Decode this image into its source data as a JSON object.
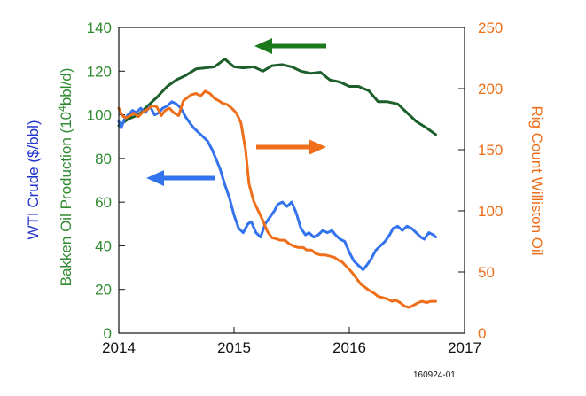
{
  "chart_data": {
    "type": "line",
    "note": "160924-01",
    "x_axis": {
      "min": 2014,
      "max": 2017,
      "ticks": [
        "2014",
        "2015",
        "2016",
        "2017"
      ]
    },
    "y_left": {
      "min": 0,
      "max": 140,
      "ticks": [
        "0",
        "20",
        "40",
        "60",
        "80",
        "100",
        "120",
        "140"
      ],
      "label_wti": "WTI Crude ($/bbl)",
      "label_bakken_prefix": "Bakken Oil Production (10",
      "label_bakken_sup": "4",
      "label_bakken_suffix": "bbl/d)"
    },
    "y_right": {
      "min": 0,
      "max": 250,
      "ticks": [
        "0",
        "50",
        "100",
        "150",
        "200",
        "250"
      ],
      "label": "Rig Count Williston Oil"
    },
    "colors": {
      "wti": "#3373ee",
      "bakken": "#1c5f2a",
      "rig": "#ee6e1a",
      "left_axis_green": "#2f8a2f",
      "left_axis_blue": "#2233cc",
      "right_axis": "#ee6e1a"
    },
    "series": [
      {
        "key": "bakken",
        "axis": "left",
        "x": [
          2014.0,
          2014.08,
          2014.17,
          2014.25,
          2014.33,
          2014.42,
          2014.5,
          2014.58,
          2014.67,
          2014.75,
          2014.83,
          2014.92,
          2015.0,
          2015.08,
          2015.17,
          2015.25,
          2015.33,
          2015.42,
          2015.5,
          2015.58,
          2015.67,
          2015.75,
          2015.83,
          2015.92,
          2016.0,
          2016.08,
          2016.17,
          2016.25,
          2016.33,
          2016.42,
          2016.5,
          2016.58,
          2016.67,
          2016.75
        ],
        "y": [
          95,
          98,
          100,
          104,
          108,
          113,
          116,
          118,
          121,
          121.5,
          122,
          125.5,
          122,
          121.5,
          122,
          120,
          122.5,
          123,
          122,
          120,
          119,
          119.5,
          116,
          115,
          113,
          113,
          111,
          106,
          106,
          105,
          101,
          97,
          94,
          91
        ]
      },
      {
        "key": "wti",
        "axis": "left",
        "x": [
          2014.0,
          2014.02,
          2014.05,
          2014.08,
          2014.12,
          2014.15,
          2014.19,
          2014.23,
          2014.27,
          2014.31,
          2014.35,
          2014.38,
          2014.42,
          2014.46,
          2014.5,
          2014.54,
          2014.58,
          2014.62,
          2014.65,
          2014.69,
          2014.73,
          2014.77,
          2014.81,
          2014.85,
          2014.88,
          2014.92,
          2014.96,
          2015.0,
          2015.04,
          2015.08,
          2015.12,
          2015.15,
          2015.19,
          2015.23,
          2015.27,
          2015.31,
          2015.35,
          2015.38,
          2015.42,
          2015.46,
          2015.5,
          2015.54,
          2015.58,
          2015.62,
          2015.65,
          2015.69,
          2015.73,
          2015.77,
          2015.81,
          2015.85,
          2015.88,
          2015.92,
          2015.96,
          2016.0,
          2016.04,
          2016.08,
          2016.12,
          2016.15,
          2016.19,
          2016.23,
          2016.27,
          2016.31,
          2016.35,
          2016.38,
          2016.42,
          2016.46,
          2016.5,
          2016.54,
          2016.58,
          2016.62,
          2016.65,
          2016.69,
          2016.73,
          2016.75
        ],
        "y": [
          97,
          94,
          98,
          100,
          102,
          101,
          103,
          101,
          104,
          100,
          101,
          103,
          104,
          106,
          105,
          103,
          99,
          96,
          94,
          92,
          90,
          88,
          84,
          79,
          75,
          68,
          62,
          54,
          48,
          46,
          50,
          51,
          46,
          44,
          50,
          53,
          56,
          59,
          60,
          58,
          60,
          55,
          48,
          45,
          46,
          44,
          45,
          47,
          46,
          47,
          45,
          43,
          42,
          37,
          33,
          31,
          29,
          31,
          34,
          38,
          40,
          42,
          45,
          48,
          49,
          47,
          49,
          48,
          46,
          44,
          43,
          46,
          45,
          44
        ]
      },
      {
        "key": "rig",
        "axis": "right",
        "x": [
          2014.0,
          2014.03,
          2014.06,
          2014.1,
          2014.13,
          2014.17,
          2014.21,
          2014.25,
          2014.29,
          2014.33,
          2014.37,
          2014.4,
          2014.44,
          2014.48,
          2014.52,
          2014.56,
          2014.6,
          2014.63,
          2014.67,
          2014.71,
          2014.75,
          2014.79,
          2014.83,
          2014.87,
          2014.9,
          2014.94,
          2014.98,
          2015.02,
          2015.06,
          2015.1,
          2015.13,
          2015.17,
          2015.21,
          2015.25,
          2015.29,
          2015.33,
          2015.37,
          2015.4,
          2015.44,
          2015.48,
          2015.52,
          2015.56,
          2015.6,
          2015.63,
          2015.67,
          2015.71,
          2015.75,
          2015.79,
          2015.83,
          2015.87,
          2015.9,
          2015.94,
          2015.98,
          2016.02,
          2016.06,
          2016.1,
          2016.13,
          2016.17,
          2016.21,
          2016.25,
          2016.29,
          2016.33,
          2016.37,
          2016.4,
          2016.44,
          2016.48,
          2016.52,
          2016.56,
          2016.6,
          2016.63,
          2016.67,
          2016.71,
          2016.75
        ],
        "y": [
          184,
          178,
          176,
          178,
          180,
          177,
          181,
          183,
          186,
          185,
          178,
          182,
          184,
          180,
          178,
          190,
          193,
          195,
          196,
          194,
          198,
          196,
          192,
          190,
          188,
          187,
          184,
          180,
          172,
          150,
          122,
          108,
          100,
          92,
          83,
          78,
          77,
          76,
          76,
          73,
          71,
          70,
          70,
          68,
          68,
          65,
          64,
          64,
          63,
          62,
          60,
          58,
          54,
          50,
          45,
          40,
          38,
          35,
          33,
          30,
          29,
          28,
          26,
          27,
          25,
          22,
          21,
          23,
          25,
          26,
          25,
          26,
          26
        ]
      }
    ]
  }
}
